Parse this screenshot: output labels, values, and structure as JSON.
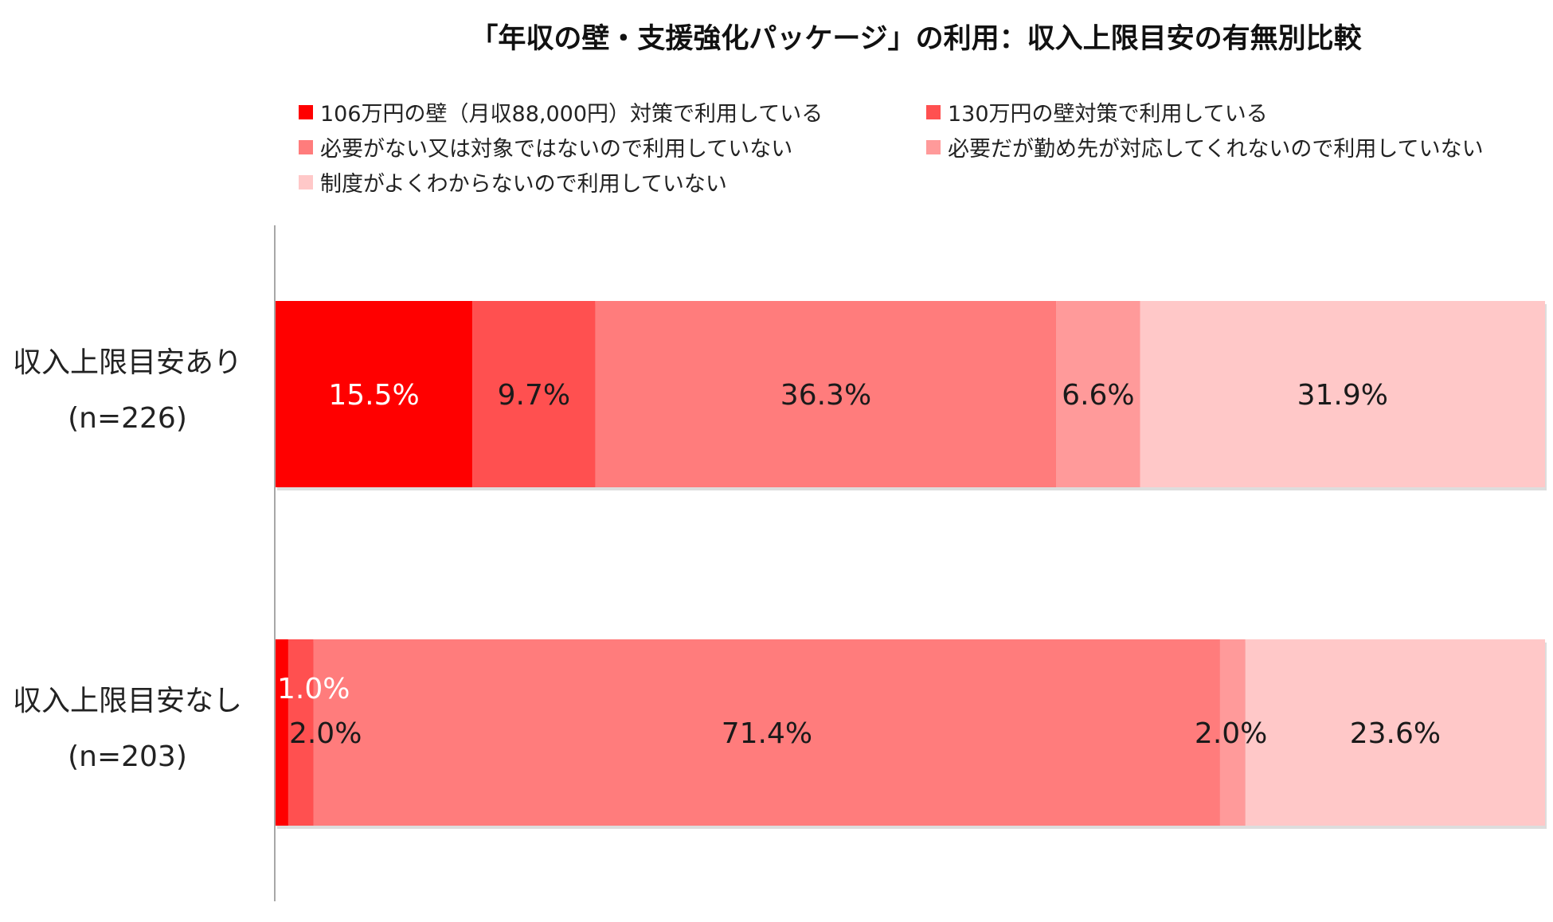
{
  "chart_data": {
    "type": "bar",
    "orientation": "horizontal",
    "stacked": true,
    "title": "「年収の壁・支援強化パッケージ」の利用：収入上限目安の有無別比較",
    "xlabel": "",
    "ylabel": "",
    "xlim": [
      0,
      100
    ],
    "grid": false,
    "legend_position": "top",
    "categories": [
      {
        "label": "収入上限目安あり",
        "n": "(n=226)"
      },
      {
        "label": "収入上限目安なし",
        "n": "(n=203)"
      }
    ],
    "series": [
      {
        "name": "106万円の壁（月収88,000円）対策で利用している",
        "color": "#ff0000",
        "label_color": "#ffffff",
        "values": [
          15.5,
          1.0
        ],
        "labels": [
          "15.5%",
          "1.0%"
        ]
      },
      {
        "name": "130万円の壁対策で利用している",
        "color": "#ff5050",
        "label_color": "#1a1a1a",
        "values": [
          9.7,
          2.0
        ],
        "labels": [
          "9.7%",
          "2.0%"
        ]
      },
      {
        "name": "必要がない又は対象ではないので利用していない",
        "color": "#ff7c7c",
        "label_color": "#1a1a1a",
        "values": [
          36.3,
          71.4
        ],
        "labels": [
          "36.3%",
          "71.4%"
        ]
      },
      {
        "name": "必要だが勤め先が対応してくれないので利用していない",
        "color": "#ff9a9a",
        "label_color": "#1a1a1a",
        "values": [
          6.6,
          2.0
        ],
        "labels": [
          "6.6%",
          "2.0%"
        ]
      },
      {
        "name": "制度がよくわからないので利用していない",
        "color": "#ffc8c8",
        "label_color": "#1a1a1a",
        "values": [
          31.9,
          23.6
        ],
        "labels": [
          "31.9%",
          "23.6%"
        ]
      }
    ]
  }
}
